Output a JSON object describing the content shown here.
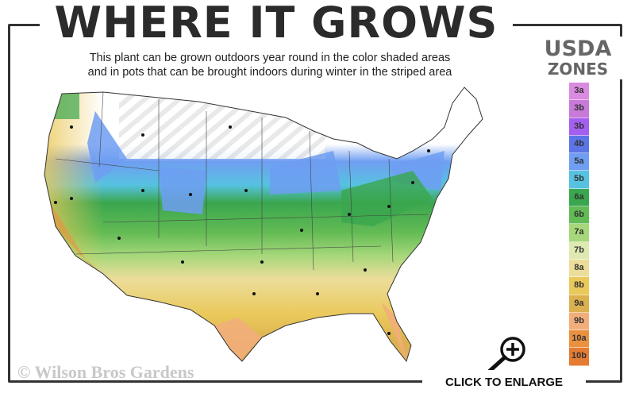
{
  "header": {
    "title": "WHERE IT GROWS",
    "subtitle_line1": "This plant can be grown outdoors year round in the color shaded areas",
    "subtitle_line2": "and in pots that can be brought indoors during winter in the striped area"
  },
  "legend": {
    "title_line1": "USDA",
    "title_line2": "ZONES",
    "zones": [
      {
        "label": "3a",
        "color": "#d98be0"
      },
      {
        "label": "3b",
        "color": "#c77ad8"
      },
      {
        "label": "3b",
        "color": "#a35ff0"
      },
      {
        "label": "4b",
        "color": "#5b74e6"
      },
      {
        "label": "5a",
        "color": "#6f9ef2"
      },
      {
        "label": "5b",
        "color": "#56c2e0"
      },
      {
        "label": "6a",
        "color": "#3aa64e"
      },
      {
        "label": "6b",
        "color": "#62bb54"
      },
      {
        "label": "7a",
        "color": "#a6d77a"
      },
      {
        "label": "7b",
        "color": "#dfeab2"
      },
      {
        "label": "8a",
        "color": "#ecdd9a"
      },
      {
        "label": "8b",
        "color": "#eac95b"
      },
      {
        "label": "9a",
        "color": "#dbb04f"
      },
      {
        "label": "9b",
        "color": "#f2ae7a"
      },
      {
        "label": "10a",
        "color": "#ea9140"
      },
      {
        "label": "10b",
        "color": "#e47c32"
      }
    ]
  },
  "footer": {
    "copyright": "© Wilson Bros Gardens",
    "enlarge_label": "CLICK TO ENLARGE",
    "enlarge_icon": "magnifier-plus-icon"
  }
}
